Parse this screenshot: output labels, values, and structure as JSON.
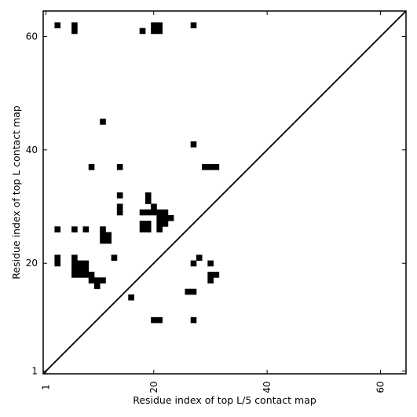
{
  "chart_data": {
    "type": "heatmap",
    "xlabel": "Residue index of top L/5 contact map",
    "ylabel": "Residue index of top L contact map",
    "xlim": [
      0.5,
      64.5
    ],
    "ylim": [
      0.5,
      64.5
    ],
    "xticks": [
      {
        "value": 1,
        "label": "1"
      },
      {
        "value": 20,
        "label": "20"
      },
      {
        "value": 40,
        "label": "40"
      },
      {
        "value": 60,
        "label": "60"
      }
    ],
    "yticks": [
      {
        "value": 1,
        "label": "1"
      },
      {
        "value": 20,
        "label": "20"
      },
      {
        "value": 40,
        "label": "40"
      },
      {
        "value": 60,
        "label": "60"
      }
    ],
    "diagonal": true,
    "grid": false,
    "cell_color": "#000000",
    "cells": [
      [
        3,
        62
      ],
      [
        6,
        61
      ],
      [
        6,
        62
      ],
      [
        18,
        61
      ],
      [
        20,
        61
      ],
      [
        20,
        62
      ],
      [
        21,
        61
      ],
      [
        21,
        62
      ],
      [
        27,
        62
      ],
      [
        11,
        45
      ],
      [
        27,
        41
      ],
      [
        9,
        37
      ],
      [
        14,
        37
      ],
      [
        29,
        37
      ],
      [
        30,
        37
      ],
      [
        31,
        37
      ],
      [
        14,
        32
      ],
      [
        19,
        32
      ],
      [
        14,
        30
      ],
      [
        19,
        31
      ],
      [
        20,
        30
      ],
      [
        14,
        29
      ],
      [
        18,
        29
      ],
      [
        19,
        29
      ],
      [
        20,
        29
      ],
      [
        21,
        29
      ],
      [
        22,
        29
      ],
      [
        21,
        28
      ],
      [
        22,
        28
      ],
      [
        23,
        28
      ],
      [
        18,
        27
      ],
      [
        19,
        27
      ],
      [
        21,
        27
      ],
      [
        22,
        27
      ],
      [
        3,
        26
      ],
      [
        6,
        26
      ],
      [
        8,
        26
      ],
      [
        11,
        26
      ],
      [
        18,
        26
      ],
      [
        19,
        26
      ],
      [
        21,
        26
      ],
      [
        11,
        25
      ],
      [
        12,
        25
      ],
      [
        11,
        24
      ],
      [
        12,
        24
      ],
      [
        3,
        21
      ],
      [
        6,
        21
      ],
      [
        13,
        21
      ],
      [
        28,
        21
      ],
      [
        3,
        20
      ],
      [
        6,
        20
      ],
      [
        7,
        20
      ],
      [
        8,
        20
      ],
      [
        27,
        20
      ],
      [
        30,
        20
      ],
      [
        6,
        19
      ],
      [
        7,
        19
      ],
      [
        8,
        19
      ],
      [
        6,
        18
      ],
      [
        7,
        18
      ],
      [
        8,
        18
      ],
      [
        9,
        18
      ],
      [
        30,
        18
      ],
      [
        31,
        18
      ],
      [
        9,
        17
      ],
      [
        10,
        17
      ],
      [
        11,
        17
      ],
      [
        30,
        17
      ],
      [
        10,
        16
      ],
      [
        16,
        14
      ],
      [
        26,
        15
      ],
      [
        27,
        15
      ],
      [
        20,
        10
      ],
      [
        21,
        10
      ],
      [
        27,
        10
      ]
    ]
  }
}
